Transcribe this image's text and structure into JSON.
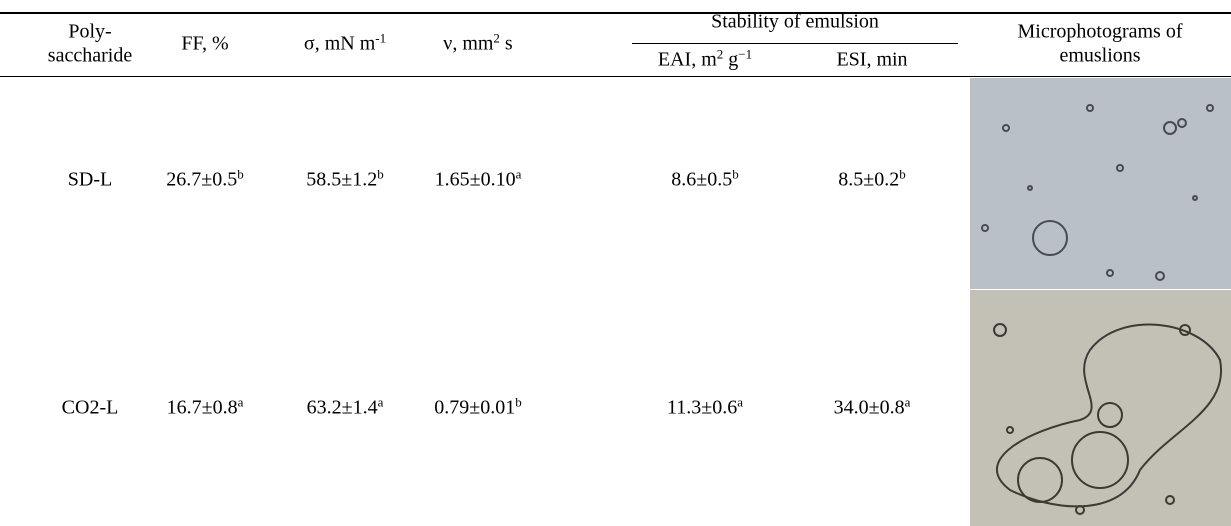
{
  "header": {
    "polysaccharide": [
      "Poly-",
      "saccharide"
    ],
    "ff": [
      "FF, %"
    ],
    "sigma": [
      "σ, mN m",
      "-1"
    ],
    "nu": [
      "ν, mm",
      "2",
      " s"
    ],
    "stability": "Stability of emulsion",
    "eai": [
      "EAI, m",
      "2",
      " g",
      "−1"
    ],
    "esi": [
      "ESI, min"
    ],
    "micro": [
      "Microphotograms of",
      "emuslions"
    ]
  },
  "rows": [
    {
      "name": "SD-L",
      "cells": [
        [
          "26.7±0.5",
          "b"
        ],
        [
          "58.5±1.2",
          "b"
        ],
        [
          "1.65±0.10",
          "a"
        ],
        [
          "8.6±0.5",
          "b"
        ],
        [
          "8.5±0.2",
          "b"
        ]
      ]
    },
    {
      "name": "CO2-L",
      "cells": [
        [
          "16.7±0.8",
          "a"
        ],
        [
          "63.2±1.4",
          "a"
        ],
        [
          "0.79±0.01",
          "b"
        ],
        [
          "11.3±0.6",
          "a"
        ],
        [
          "34.0±0.8",
          "a"
        ]
      ]
    }
  ]
}
